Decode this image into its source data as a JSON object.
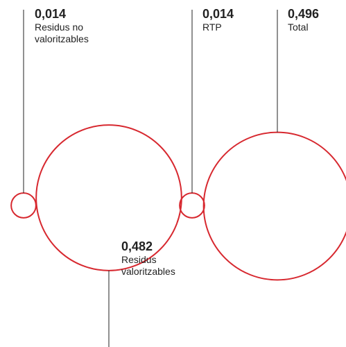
{
  "chart_data": {
    "type": "circles",
    "categories": [
      "Residus no valoritzables",
      "Residus valoritzables",
      "RTP",
      "Total"
    ],
    "values": [
      0.014,
      0.482,
      0.014,
      0.496
    ],
    "value_labels": [
      "0,014",
      "0,482",
      "0,014",
      "0,496"
    ],
    "color": "#d7282f"
  }
}
